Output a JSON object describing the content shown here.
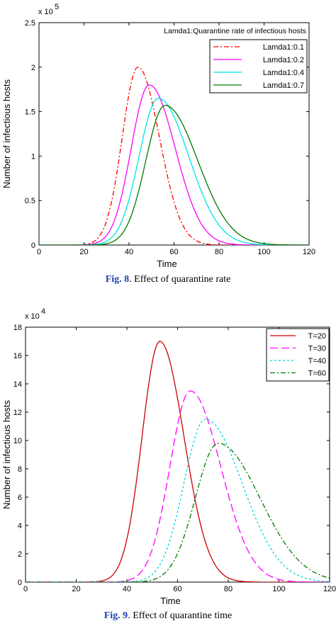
{
  "charts": [
    {
      "caption_fig": "Fig. 8",
      "caption_text": ". Effect of quarantine rate",
      "chart_data": {
        "type": "line",
        "title": "",
        "annotation": "Lamda1:Quarantine rate of infectious hosts",
        "xlabel": "Time",
        "ylabel": "Number of infectious hosts",
        "xlim": [
          0,
          120
        ],
        "ylim": [
          0,
          250000
        ],
        "x_ticks": [
          "0",
          "20",
          "40",
          "60",
          "80",
          "100",
          "120"
        ],
        "y_ticks": [
          "0",
          "0.5",
          "1",
          "1.5",
          "2",
          "2.5"
        ],
        "y_multiplier": "x 10",
        "y_multiplier_exp": "5",
        "legend_position": "top-right",
        "grid": false,
        "series": [
          {
            "name": "Lamda1:0.1",
            "color": "#ff0000",
            "dash": "dashdot",
            "peak_x": 44,
            "peak_y": 200000,
            "sigma_left": 7.0,
            "sigma_right": 9.5
          },
          {
            "name": "Lamda1:0.2",
            "color": "#ff00ff",
            "dash": "solid",
            "peak_x": 49,
            "peak_y": 180000,
            "sigma_left": 8.0,
            "sigma_right": 11.5
          },
          {
            "name": "Lamda1:0.4",
            "color": "#00e5e5",
            "dash": "solid",
            "peak_x": 53,
            "peak_y": 165000,
            "sigma_left": 8.5,
            "sigma_right": 13.5
          },
          {
            "name": "Lamda1:0.7",
            "color": "#007a00",
            "dash": "solid",
            "peak_x": 56,
            "peak_y": 157000,
            "sigma_left": 8.5,
            "sigma_right": 14.5
          }
        ]
      }
    },
    {
      "caption_fig": "Fig. 9",
      "caption_text": ". Effect of quarantine time",
      "chart_data": {
        "type": "line",
        "title": "",
        "xlabel": "Time",
        "ylabel": "Number of infectious hosts",
        "xlim": [
          0,
          120
        ],
        "ylim": [
          0,
          180000
        ],
        "x_ticks": [
          "0",
          "20",
          "40",
          "60",
          "80",
          "100",
          "120"
        ],
        "y_ticks": [
          "0",
          "2",
          "4",
          "6",
          "8",
          "10",
          "12",
          "14",
          "16",
          "18"
        ],
        "y_multiplier": "x 10",
        "y_multiplier_exp": "4",
        "legend_position": "top-right",
        "grid": false,
        "series": [
          {
            "name": "T=20",
            "color": "#cc0000",
            "dash": "solid",
            "peak_x": 53,
            "peak_y": 170000,
            "sigma_left": 7.0,
            "sigma_right": 9.5
          },
          {
            "name": "T=30",
            "color": "#ff00ff",
            "dash": "longdash",
            "peak_x": 65,
            "peak_y": 135000,
            "sigma_left": 8.0,
            "sigma_right": 12.0
          },
          {
            "name": "T=40",
            "color": "#00d8d8",
            "dash": "dotted",
            "peak_x": 71,
            "peak_y": 115000,
            "sigma_left": 8.5,
            "sigma_right": 14.5
          },
          {
            "name": "T=60",
            "color": "#007a00",
            "dash": "dashdot",
            "peak_x": 76,
            "peak_y": 98000,
            "sigma_left": 9.0,
            "sigma_right": 16.5
          }
        ]
      }
    }
  ]
}
